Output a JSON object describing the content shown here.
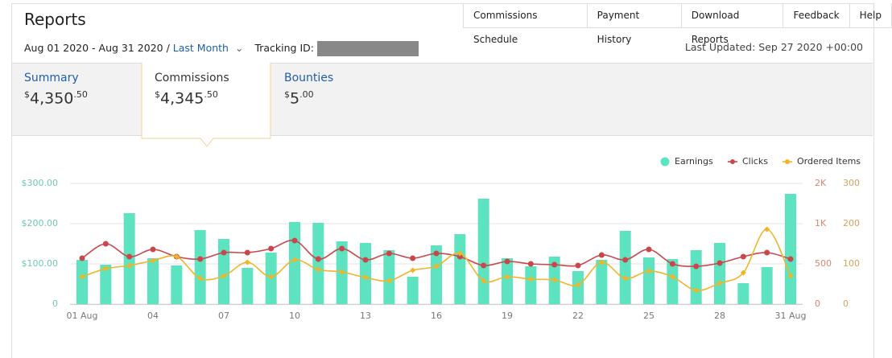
{
  "header": {
    "title": "Reports",
    "nav": [
      "Commissions Schedule",
      "Payment History",
      "Download Reports",
      "Feedback",
      "Help"
    ],
    "date_range": "Aug 01 2020 - Aug 31 2020 /",
    "period": "Last Month",
    "tracking_label": "Tracking ID:",
    "last_updated": "Last Updated: Sep 27 2020 +00:00"
  },
  "tabs": [
    {
      "name": "Summary",
      "currency": "$",
      "amount": "4,350",
      "cents": ".50"
    },
    {
      "name": "Commissions",
      "currency": "$",
      "amount": "4,345",
      "cents": ".50"
    },
    {
      "name": "Bounties",
      "currency": "$",
      "amount": "5",
      "cents": ".00"
    }
  ],
  "chart_data": {
    "type": "bar-line",
    "categories": [
      "01 Aug",
      null,
      null,
      "04",
      null,
      null,
      "07",
      null,
      null,
      "10",
      null,
      null,
      "13",
      null,
      null,
      "16",
      null,
      null,
      "19",
      null,
      null,
      "22",
      null,
      null,
      "25",
      null,
      null,
      "28",
      null,
      null,
      "31 Aug"
    ],
    "series": [
      {
        "name": "Earnings",
        "type": "bar",
        "color": "#5ee3c1",
        "axis": "y",
        "values": [
          110,
          98,
          226,
          114,
          96,
          184,
          162,
          90,
          128,
          204,
          202,
          156,
          152,
          134,
          68,
          146,
          174,
          262,
          114,
          94,
          118,
          82,
          110,
          182,
          116,
          112,
          134,
          152,
          52,
          92,
          274
        ]
      },
      {
        "name": "Clicks",
        "type": "line",
        "color": "#c9474a",
        "axis": "y2",
        "values": [
          570,
          750,
          590,
          680,
          590,
          560,
          640,
          640,
          690,
          790,
          560,
          690,
          550,
          630,
          570,
          630,
          590,
          480,
          530,
          500,
          490,
          480,
          610,
          550,
          680,
          500,
          470,
          510,
          590,
          640,
          560
        ]
      },
      {
        "name": "Ordered Items",
        "type": "line",
        "color": "#f0b429",
        "axis": "y3",
        "values": [
          68,
          88,
          96,
          108,
          118,
          64,
          70,
          104,
          68,
          110,
          86,
          80,
          66,
          58,
          84,
          94,
          126,
          58,
          68,
          62,
          60,
          48,
          104,
          64,
          82,
          68,
          34,
          52,
          78,
          186,
          70
        ]
      }
    ],
    "ylim": [
      0,
      300
    ],
    "yticks": [
      0,
      {
        "value": 100,
        "label": "$100.00"
      },
      {
        "value": 200,
        "label": "$200.00"
      },
      {
        "value": 300,
        "label": "$300.00"
      }
    ],
    "y2lim": [
      0,
      1500
    ],
    "y2ticks": [
      0,
      500,
      {
        "value": 1000,
        "label": "1K"
      },
      {
        "value": 1500,
        "label": "2K"
      }
    ],
    "y3lim": [
      0,
      300
    ],
    "y3ticks": [
      0,
      100,
      200,
      300
    ],
    "grid": true,
    "legend": "top-right"
  }
}
